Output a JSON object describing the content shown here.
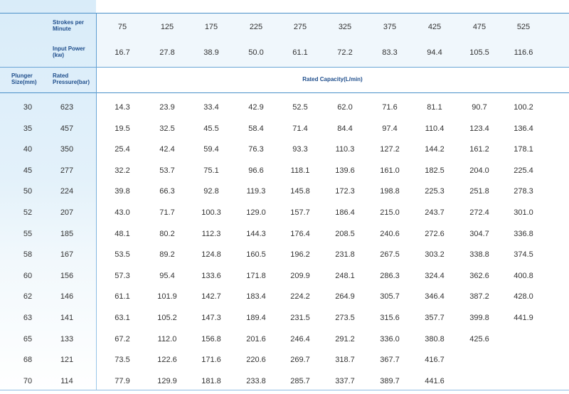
{
  "header": {
    "strokes_label": "Strokes per Minute",
    "power_label": "Input Power (kw)",
    "plunger_label": "Plunger Size(mm)",
    "pressure_label": "Rated Pressure(bar)",
    "capacity_label": "Rated Capacity(L/min)"
  },
  "strokes": [
    "75",
    "125",
    "175",
    "225",
    "275",
    "325",
    "375",
    "425",
    "475",
    "525"
  ],
  "power": [
    "16.7",
    "27.8",
    "38.9",
    "50.0",
    "61.1",
    "72.2",
    "83.3",
    "94.4",
    "105.5",
    "116.6"
  ],
  "rows": [
    {
      "size": "30",
      "pressure": "623",
      "values": [
        "14.3",
        "23.9",
        "33.4",
        "42.9",
        "52.5",
        "62.0",
        "71.6",
        "81.1",
        "90.7",
        "100.2"
      ]
    },
    {
      "size": "35",
      "pressure": "457",
      "values": [
        "19.5",
        "32.5",
        "45.5",
        "58.4",
        "71.4",
        "84.4",
        "97.4",
        "110.4",
        "123.4",
        "136.4"
      ]
    },
    {
      "size": "40",
      "pressure": "350",
      "values": [
        "25.4",
        "42.4",
        "59.4",
        "76.3",
        "93.3",
        "110.3",
        "127.2",
        "144.2",
        "161.2",
        "178.1"
      ]
    },
    {
      "size": "45",
      "pressure": "277",
      "values": [
        "32.2",
        "53.7",
        "75.1",
        "96.6",
        "118.1",
        "139.6",
        "161.0",
        "182.5",
        "204.0",
        "225.4"
      ]
    },
    {
      "size": "50",
      "pressure": "224",
      "values": [
        "39.8",
        "66.3",
        "92.8",
        "119.3",
        "145.8",
        "172.3",
        "198.8",
        "225.3",
        "251.8",
        "278.3"
      ]
    },
    {
      "size": "52",
      "pressure": "207",
      "values": [
        "43.0",
        "71.7",
        "100.3",
        "129.0",
        "157.7",
        "186.4",
        "215.0",
        "243.7",
        "272.4",
        "301.0"
      ]
    },
    {
      "size": "55",
      "pressure": "185",
      "values": [
        "48.1",
        "80.2",
        "112.3",
        "144.3",
        "176.4",
        "208.5",
        "240.6",
        "272.6",
        "304.7",
        "336.8"
      ]
    },
    {
      "size": "58",
      "pressure": "167",
      "values": [
        "53.5",
        "89.2",
        "124.8",
        "160.5",
        "196.2",
        "231.8",
        "267.5",
        "303.2",
        "338.8",
        "374.5"
      ]
    },
    {
      "size": "60",
      "pressure": "156",
      "values": [
        "57.3",
        "95.4",
        "133.6",
        "171.8",
        "209.9",
        "248.1",
        "286.3",
        "324.4",
        "362.6",
        "400.8"
      ]
    },
    {
      "size": "62",
      "pressure": "146",
      "values": [
        "61.1",
        "101.9",
        "142.7",
        "183.4",
        "224.2",
        "264.9",
        "305.7",
        "346.4",
        "387.2",
        "428.0"
      ]
    },
    {
      "size": "63",
      "pressure": "141",
      "values": [
        "63.1",
        "105.2",
        "147.3",
        "189.4",
        "231.5",
        "273.5",
        "315.6",
        "357.7",
        "399.8",
        "441.9"
      ]
    },
    {
      "size": "65",
      "pressure": "133",
      "values": [
        "67.2",
        "112.0",
        "156.8",
        "201.6",
        "246.4",
        "291.2",
        "336.0",
        "380.8",
        "425.6",
        ""
      ]
    },
    {
      "size": "68",
      "pressure": "121",
      "values": [
        "73.5",
        "122.6",
        "171.6",
        "220.6",
        "269.7",
        "318.7",
        "367.7",
        "416.7",
        "",
        ""
      ]
    },
    {
      "size": "70",
      "pressure": "114",
      "values": [
        "77.9",
        "129.9",
        "181.8",
        "233.8",
        "285.7",
        "337.7",
        "389.7",
        "441.6",
        "",
        ""
      ]
    }
  ]
}
